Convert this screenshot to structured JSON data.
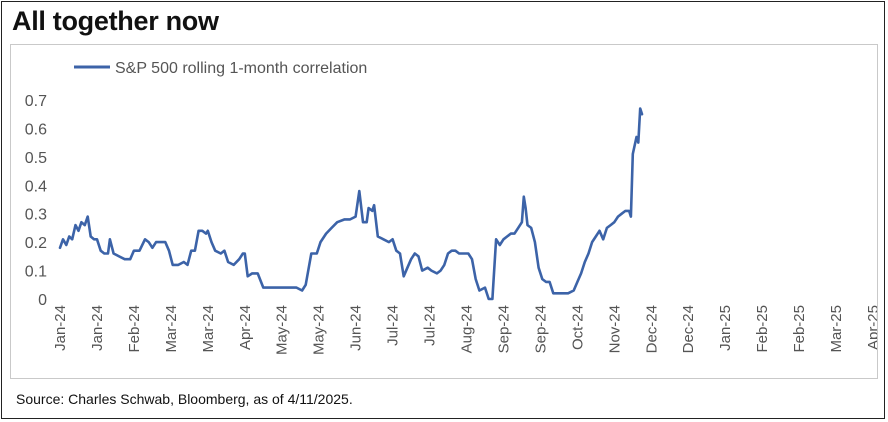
{
  "title": "All together now",
  "source": "Source: Charles Schwab, Bloomberg, as of 4/11/2025.",
  "chart_data": {
    "type": "line",
    "legend_position": "top-left",
    "grid": false,
    "ylim": [
      0,
      0.7
    ],
    "yticks": [
      "0",
      "0.1",
      "0.2",
      "0.3",
      "0.4",
      "0.5",
      "0.6",
      "0.7"
    ],
    "xtick_labels": [
      "Jan-24",
      "Jan-24",
      "Feb-24",
      "Mar-24",
      "Mar-24",
      "Apr-24",
      "May-24",
      "May-24",
      "Jun-24",
      "Jul-24",
      "Jul-24",
      "Aug-24",
      "Sep-24",
      "Sep-24",
      "Oct-24",
      "Nov-24",
      "Dec-24",
      "Dec-24",
      "Jan-25",
      "Feb-25",
      "Feb-25",
      "Mar-25",
      "Apr-25"
    ],
    "series": [
      {
        "name": "S&P 500 rolling 1-month correlation",
        "color": "#3c63a8",
        "points": [
          [
            0.0,
            0.18
          ],
          [
            0.08,
            0.21
          ],
          [
            0.17,
            0.19
          ],
          [
            0.25,
            0.22
          ],
          [
            0.33,
            0.21
          ],
          [
            0.42,
            0.26
          ],
          [
            0.5,
            0.24
          ],
          [
            0.58,
            0.27
          ],
          [
            0.67,
            0.26
          ],
          [
            0.75,
            0.29
          ],
          [
            0.83,
            0.22
          ],
          [
            0.92,
            0.21
          ],
          [
            1.0,
            0.21
          ],
          [
            1.1,
            0.17
          ],
          [
            1.2,
            0.16
          ],
          [
            1.3,
            0.16
          ],
          [
            1.35,
            0.21
          ],
          [
            1.45,
            0.16
          ],
          [
            1.6,
            0.15
          ],
          [
            1.75,
            0.14
          ],
          [
            1.9,
            0.14
          ],
          [
            2.0,
            0.17
          ],
          [
            2.15,
            0.17
          ],
          [
            2.3,
            0.21
          ],
          [
            2.4,
            0.2
          ],
          [
            2.5,
            0.18
          ],
          [
            2.6,
            0.2
          ],
          [
            2.75,
            0.2
          ],
          [
            2.85,
            0.2
          ],
          [
            2.95,
            0.17
          ],
          [
            3.05,
            0.12
          ],
          [
            3.2,
            0.12
          ],
          [
            3.35,
            0.13
          ],
          [
            3.45,
            0.12
          ],
          [
            3.55,
            0.17
          ],
          [
            3.65,
            0.17
          ],
          [
            3.75,
            0.24
          ],
          [
            3.85,
            0.24
          ],
          [
            3.95,
            0.23
          ],
          [
            4.0,
            0.24
          ],
          [
            4.1,
            0.2
          ],
          [
            4.2,
            0.17
          ],
          [
            4.35,
            0.16
          ],
          [
            4.45,
            0.17
          ],
          [
            4.55,
            0.13
          ],
          [
            4.7,
            0.12
          ],
          [
            4.85,
            0.14
          ],
          [
            4.95,
            0.16
          ],
          [
            5.0,
            0.16
          ],
          [
            5.08,
            0.08
          ],
          [
            5.2,
            0.09
          ],
          [
            5.35,
            0.09
          ],
          [
            5.5,
            0.04
          ],
          [
            5.7,
            0.04
          ],
          [
            5.8,
            0.04
          ],
          [
            6.0,
            0.04
          ],
          [
            6.2,
            0.04
          ],
          [
            6.4,
            0.04
          ],
          [
            6.55,
            0.03
          ],
          [
            6.65,
            0.05
          ],
          [
            6.8,
            0.16
          ],
          [
            6.95,
            0.16
          ],
          [
            7.05,
            0.2
          ],
          [
            7.2,
            0.23
          ],
          [
            7.35,
            0.25
          ],
          [
            7.5,
            0.27
          ],
          [
            7.7,
            0.28
          ],
          [
            7.85,
            0.28
          ],
          [
            8.0,
            0.29
          ],
          [
            8.1,
            0.38
          ],
          [
            8.2,
            0.27
          ],
          [
            8.3,
            0.27
          ],
          [
            8.35,
            0.32
          ],
          [
            8.45,
            0.31
          ],
          [
            8.5,
            0.33
          ],
          [
            8.6,
            0.22
          ],
          [
            8.75,
            0.21
          ],
          [
            8.9,
            0.2
          ],
          [
            9.0,
            0.21
          ],
          [
            9.1,
            0.17
          ],
          [
            9.2,
            0.16
          ],
          [
            9.3,
            0.08
          ],
          [
            9.4,
            0.11
          ],
          [
            9.5,
            0.14
          ],
          [
            9.6,
            0.16
          ],
          [
            9.7,
            0.15
          ],
          [
            9.8,
            0.1
          ],
          [
            9.95,
            0.11
          ],
          [
            10.05,
            0.1
          ],
          [
            10.2,
            0.09
          ],
          [
            10.3,
            0.1
          ],
          [
            10.4,
            0.12
          ],
          [
            10.5,
            0.16
          ],
          [
            10.6,
            0.17
          ],
          [
            10.7,
            0.17
          ],
          [
            10.8,
            0.16
          ],
          [
            10.95,
            0.16
          ],
          [
            11.05,
            0.16
          ],
          [
            11.15,
            0.14
          ],
          [
            11.25,
            0.07
          ],
          [
            11.35,
            0.03
          ],
          [
            11.5,
            0.04
          ],
          [
            11.6,
            0.0
          ],
          [
            11.7,
            0.0
          ],
          [
            11.8,
            0.21
          ],
          [
            11.9,
            0.19
          ],
          [
            12.0,
            0.21
          ],
          [
            12.1,
            0.22
          ],
          [
            12.2,
            0.23
          ],
          [
            12.3,
            0.23
          ],
          [
            12.4,
            0.25
          ],
          [
            12.5,
            0.27
          ],
          [
            12.55,
            0.36
          ],
          [
            12.6,
            0.32
          ],
          [
            12.65,
            0.26
          ],
          [
            12.75,
            0.25
          ],
          [
            12.85,
            0.2
          ],
          [
            12.95,
            0.11
          ],
          [
            13.05,
            0.07
          ],
          [
            13.15,
            0.06
          ],
          [
            13.25,
            0.06
          ],
          [
            13.35,
            0.02
          ],
          [
            13.55,
            0.02
          ],
          [
            13.75,
            0.02
          ],
          [
            13.9,
            0.03
          ],
          [
            14.0,
            0.06
          ],
          [
            14.1,
            0.09
          ],
          [
            14.2,
            0.13
          ],
          [
            14.3,
            0.16
          ],
          [
            14.4,
            0.2
          ],
          [
            14.5,
            0.22
          ],
          [
            14.6,
            0.24
          ],
          [
            14.7,
            0.21
          ],
          [
            14.8,
            0.25
          ],
          [
            14.9,
            0.26
          ],
          [
            15.0,
            0.27
          ],
          [
            15.1,
            0.29
          ],
          [
            15.2,
            0.3
          ],
          [
            15.3,
            0.31
          ],
          [
            15.4,
            0.31
          ],
          [
            15.45,
            0.29
          ],
          [
            15.5,
            0.51
          ],
          [
            15.6,
            0.57
          ],
          [
            15.65,
            0.55
          ],
          [
            15.7,
            0.67
          ],
          [
            15.75,
            0.65
          ]
        ]
      }
    ]
  }
}
